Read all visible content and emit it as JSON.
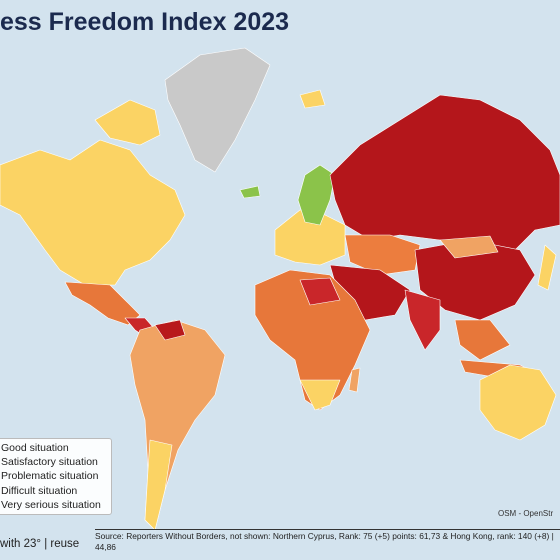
{
  "header": {
    "title": "ess Freedom Index 2023"
  },
  "legend": {
    "items": [
      "Good situation",
      "Satisfactory situation",
      "Problematic situation",
      "Difficult situation",
      "Very serious situation"
    ]
  },
  "attribution": "OSM - OpenStr",
  "footer": {
    "left": "with 23° | reuse",
    "source": "Source: Reporters Without Borders, not shown: Northern Cyprus, Rank: 75 (+5) points: 61,73 & Hong Kong, rank: 140 (+8) | 44,86"
  }
}
